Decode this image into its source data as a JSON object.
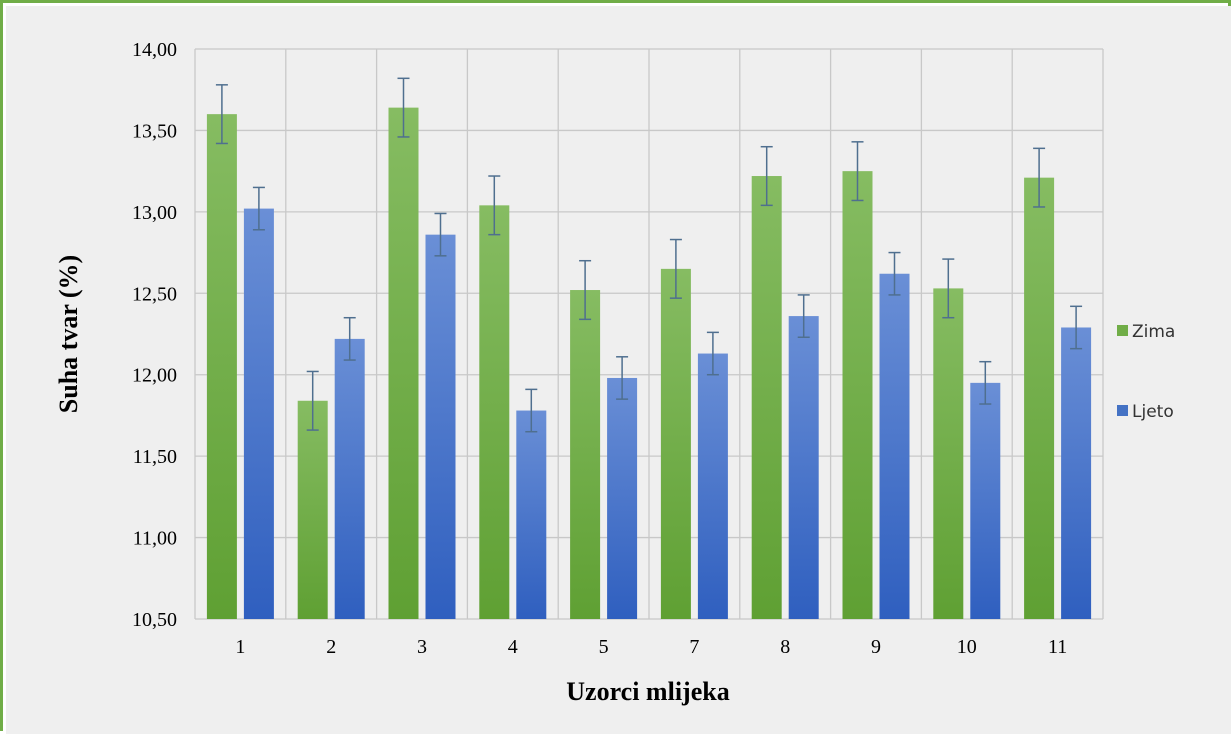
{
  "chart_data": {
    "type": "bar",
    "title": "",
    "xlabel": "Uzorci mlijeka",
    "ylabel": "Suha tvar (%)",
    "categories": [
      "1",
      "2",
      "3",
      "4",
      "5",
      "7",
      "8",
      "9",
      "10",
      "11"
    ],
    "ylim": [
      10.5,
      14.0
    ],
    "yticks": [
      "10,50",
      "11,00",
      "11,50",
      "12,00",
      "12,50",
      "13,00",
      "13,50",
      "14,00"
    ],
    "grid": true,
    "legend_position": "right",
    "error_bars": true,
    "series": [
      {
        "name": "Zima",
        "color": "#70ad47",
        "values": [
          13.6,
          11.84,
          13.64,
          13.04,
          12.52,
          12.65,
          13.22,
          13.25,
          12.53,
          13.21
        ],
        "errors": [
          0.18,
          0.18,
          0.18,
          0.18,
          0.18,
          0.18,
          0.18,
          0.18,
          0.18,
          0.18
        ]
      },
      {
        "name": "Ljeto",
        "color": "#4472c4",
        "values": [
          13.02,
          12.22,
          12.86,
          11.78,
          11.98,
          12.13,
          12.36,
          12.62,
          11.95,
          12.29
        ],
        "errors": [
          0.13,
          0.13,
          0.13,
          0.13,
          0.13,
          0.13,
          0.13,
          0.13,
          0.13,
          0.13
        ]
      }
    ]
  }
}
